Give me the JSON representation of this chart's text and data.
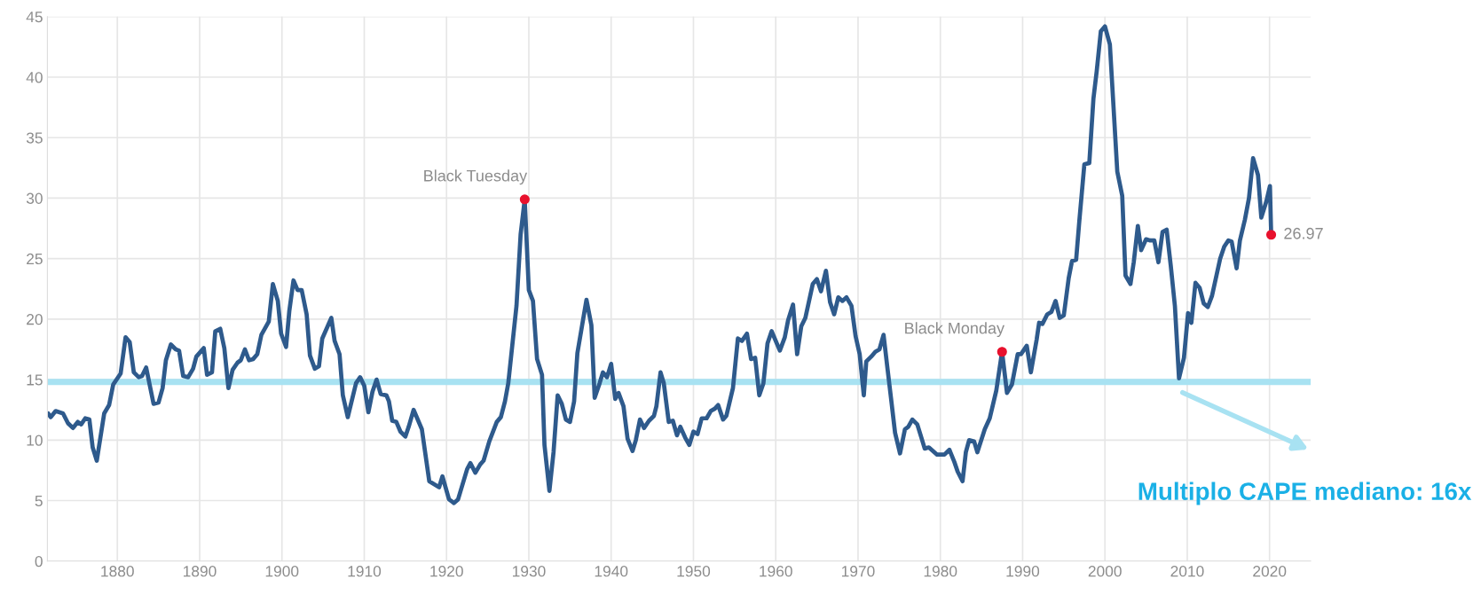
{
  "chart_data": {
    "type": "line",
    "x": [
      1871.6,
      1871.9,
      1872.5,
      1873.4,
      1874.0,
      1874.6,
      1875.2,
      1875.6,
      1876.1,
      1876.6,
      1877.0,
      1877.5,
      1878.4,
      1879.0,
      1879.5,
      1880.4,
      1881.0,
      1881.5,
      1882.0,
      1882.6,
      1883.0,
      1883.5,
      1884.4,
      1885.0,
      1885.5,
      1885.9,
      1886.5,
      1887.1,
      1887.5,
      1888.0,
      1888.6,
      1889.2,
      1889.6,
      1890.5,
      1890.9,
      1891.5,
      1891.9,
      1892.5,
      1893.0,
      1893.5,
      1894.0,
      1894.6,
      1895.0,
      1895.5,
      1896.0,
      1896.5,
      1897.0,
      1897.5,
      1898.4,
      1898.9,
      1899.5,
      1899.9,
      1900.5,
      1900.9,
      1901.4,
      1901.9,
      1902.4,
      1903.0,
      1903.4,
      1904.0,
      1904.5,
      1904.9,
      1906.0,
      1906.4,
      1907.0,
      1907.4,
      1908.0,
      1909.0,
      1909.5,
      1910.0,
      1910.5,
      1911.0,
      1911.5,
      1912.0,
      1912.7,
      1913.0,
      1913.4,
      1913.9,
      1914.4,
      1915.0,
      1915.4,
      1916.0,
      1917.0,
      1917.9,
      1919.1,
      1919.5,
      1920.3,
      1920.9,
      1921.4,
      1922.5,
      1922.9,
      1923.5,
      1924.1,
      1924.5,
      1925.2,
      1926.1,
      1926.6,
      1927.1,
      1927.5,
      1928.5,
      1929.0,
      1929.5,
      1930.0,
      1930.5,
      1931.0,
      1931.6,
      1931.9,
      1932.5,
      1933.0,
      1933.5,
      1934.0,
      1934.5,
      1935.0,
      1935.5,
      1935.9,
      1937.0,
      1937.6,
      1938.0,
      1938.6,
      1939.0,
      1939.5,
      1940.0,
      1940.5,
      1940.9,
      1941.5,
      1942.0,
      1942.6,
      1943.0,
      1943.5,
      1944.0,
      1944.6,
      1945.2,
      1945.5,
      1946.0,
      1946.4,
      1947.0,
      1947.5,
      1948.0,
      1948.4,
      1949.0,
      1949.5,
      1950.0,
      1950.5,
      1951.0,
      1951.6,
      1952.1,
      1952.6,
      1953.0,
      1953.6,
      1954.0,
      1954.8,
      1955.4,
      1955.9,
      1956.5,
      1957.0,
      1957.5,
      1958.0,
      1958.5,
      1959.0,
      1959.5,
      1960.5,
      1961.1,
      1961.5,
      1962.1,
      1962.6,
      1963.1,
      1963.6,
      1964.5,
      1965.0,
      1965.5,
      1966.1,
      1966.6,
      1967.1,
      1967.6,
      1968.1,
      1968.6,
      1969.2,
      1969.7,
      1970.2,
      1970.7,
      1971.0,
      1971.6,
      1972.1,
      1972.6,
      1973.1,
      1973.6,
      1974.0,
      1974.5,
      1975.1,
      1975.7,
      1976.1,
      1976.6,
      1977.2,
      1977.7,
      1978.1,
      1978.6,
      1979.6,
      1980.5,
      1981.1,
      1981.7,
      1982.1,
      1982.7,
      1983.1,
      1983.5,
      1984.1,
      1984.5,
      1985.4,
      1986.0,
      1986.8,
      1987.5,
      1988.1,
      1988.7,
      1989.4,
      1989.8,
      1990.5,
      1991.0,
      1991.7,
      1992.0,
      1992.4,
      1993.0,
      1993.5,
      1994.0,
      1994.5,
      1995.0,
      1995.6,
      1996.0,
      1996.5,
      1996.9,
      1997.5,
      1998.1,
      1998.6,
      1999.0,
      1999.5,
      2000.0,
      2000.6,
      2001.5,
      2002.1,
      2002.5,
      2003.1,
      2003.5,
      2004.0,
      2004.4,
      2005.0,
      2005.5,
      2006.0,
      2006.5,
      2007.0,
      2007.5,
      2008.0,
      2008.5,
      2009.0,
      2009.6,
      2010.1,
      2010.5,
      2011.0,
      2011.5,
      2012.0,
      2012.5,
      2013.0,
      2014.0,
      2014.5,
      2015.0,
      2015.4,
      2016.0,
      2016.4,
      2017.0,
      2017.5,
      2018.0,
      2018.6,
      2019.0,
      2019.6,
      2020.05,
      2020.2
    ],
    "series": [
      {
        "color": "#2e5a8c",
        "values": [
          12.2,
          11.9,
          12.4,
          12.2,
          11.4,
          11.0,
          11.5,
          11.3,
          11.8,
          11.7,
          9.4,
          8.3,
          12.2,
          12.9,
          14.6,
          15.5,
          18.5,
          18.1,
          15.6,
          15.2,
          15.3,
          16.0,
          13.0,
          13.1,
          14.3,
          16.6,
          17.9,
          17.5,
          17.4,
          15.3,
          15.2,
          15.9,
          16.9,
          17.6,
          15.4,
          15.6,
          19.0,
          19.2,
          17.6,
          14.3,
          15.8,
          16.4,
          16.6,
          17.5,
          16.6,
          16.7,
          17.1,
          18.7,
          19.8,
          22.9,
          21.5,
          18.8,
          17.7,
          20.7,
          23.2,
          22.4,
          22.4,
          20.4,
          17.0,
          15.9,
          16.1,
          18.4,
          20.1,
          18.2,
          17.1,
          13.7,
          11.9,
          14.7,
          15.2,
          14.5,
          12.3,
          14.0,
          15.0,
          13.8,
          13.7,
          13.2,
          11.6,
          11.5,
          10.7,
          10.3,
          11.1,
          12.5,
          10.9,
          6.6,
          6.1,
          7.0,
          5.1,
          4.8,
          5.1,
          7.6,
          8.1,
          7.3,
          8.0,
          8.3,
          9.9,
          11.5,
          11.9,
          13.2,
          14.7,
          21.1,
          27.0,
          29.9,
          22.4,
          21.5,
          16.7,
          15.4,
          9.6,
          5.8,
          9.0,
          13.7,
          13.0,
          11.7,
          11.5,
          13.2,
          17.2,
          21.6,
          19.5,
          13.5,
          14.7,
          15.6,
          15.2,
          16.3,
          13.4,
          13.9,
          12.8,
          10.1,
          9.1,
          10.0,
          11.7,
          11.0,
          11.6,
          12.0,
          12.8,
          15.6,
          14.7,
          11.5,
          11.6,
          10.4,
          11.1,
          10.2,
          9.6,
          10.7,
          10.5,
          11.8,
          11.8,
          12.4,
          12.6,
          12.9,
          11.7,
          12.0,
          14.3,
          18.4,
          18.2,
          18.8,
          16.7,
          16.8,
          13.7,
          14.7,
          18.0,
          19.0,
          17.4,
          18.5,
          19.9,
          21.2,
          17.1,
          19.4,
          20.1,
          22.9,
          23.3,
          22.3,
          24.0,
          21.4,
          20.4,
          21.8,
          21.5,
          21.8,
          21.1,
          18.6,
          17.1,
          13.7,
          16.5,
          16.9,
          17.3,
          17.5,
          18.7,
          15.8,
          13.5,
          10.6,
          8.9,
          10.9,
          11.1,
          11.7,
          11.3,
          10.2,
          9.3,
          9.4,
          8.8,
          8.8,
          9.2,
          8.2,
          7.4,
          6.6,
          9.0,
          10.0,
          9.9,
          9.0,
          10.9,
          11.8,
          14.1,
          17.3,
          13.9,
          14.6,
          17.1,
          17.1,
          17.8,
          15.6,
          18.3,
          19.7,
          19.6,
          20.4,
          20.6,
          21.5,
          20.1,
          20.3,
          23.4,
          24.8,
          24.9,
          28.2,
          32.8,
          32.9,
          38.2,
          40.5,
          43.8,
          44.2,
          42.7,
          32.2,
          30.2,
          23.6,
          22.9,
          24.7,
          27.7,
          25.7,
          26.6,
          26.5,
          26.5,
          24.7,
          27.2,
          27.4,
          24.4,
          21.1,
          15.1,
          16.8,
          20.5,
          19.7,
          23.0,
          22.6,
          21.3,
          21.0,
          21.9,
          25.0,
          26.0,
          26.5,
          26.4,
          24.2,
          26.5,
          28.2,
          30.0,
          33.3,
          31.9,
          28.4,
          29.7,
          31.0,
          26.97
        ]
      }
    ],
    "xlim": [
      1871.5,
      2025
    ],
    "xticks": [
      1880,
      1890,
      1900,
      1910,
      1920,
      1930,
      1940,
      1950,
      1960,
      1970,
      1980,
      1990,
      2000,
      2010,
      2020
    ],
    "ylim": [
      0,
      45
    ],
    "yticks": [
      0,
      5,
      10,
      15,
      20,
      25,
      30,
      35,
      40,
      45
    ],
    "grid": true,
    "legend": false,
    "marker": "none",
    "line_style": "solid",
    "ref_lines": [
      {
        "axis": "y",
        "value": 14.8,
        "color": "#a8e2f2",
        "line_style": "solid"
      }
    ],
    "annotations": [
      {
        "text": "Black Tuesday",
        "x": 1929.5,
        "y": 29.9
      },
      {
        "text": "Black Monday",
        "x": 1987.5,
        "y": 17.3
      },
      {
        "text": "26.97",
        "x": 2020.2,
        "y": 26.97
      },
      "Multiplo CAPE mediano: 16x"
    ]
  }
}
